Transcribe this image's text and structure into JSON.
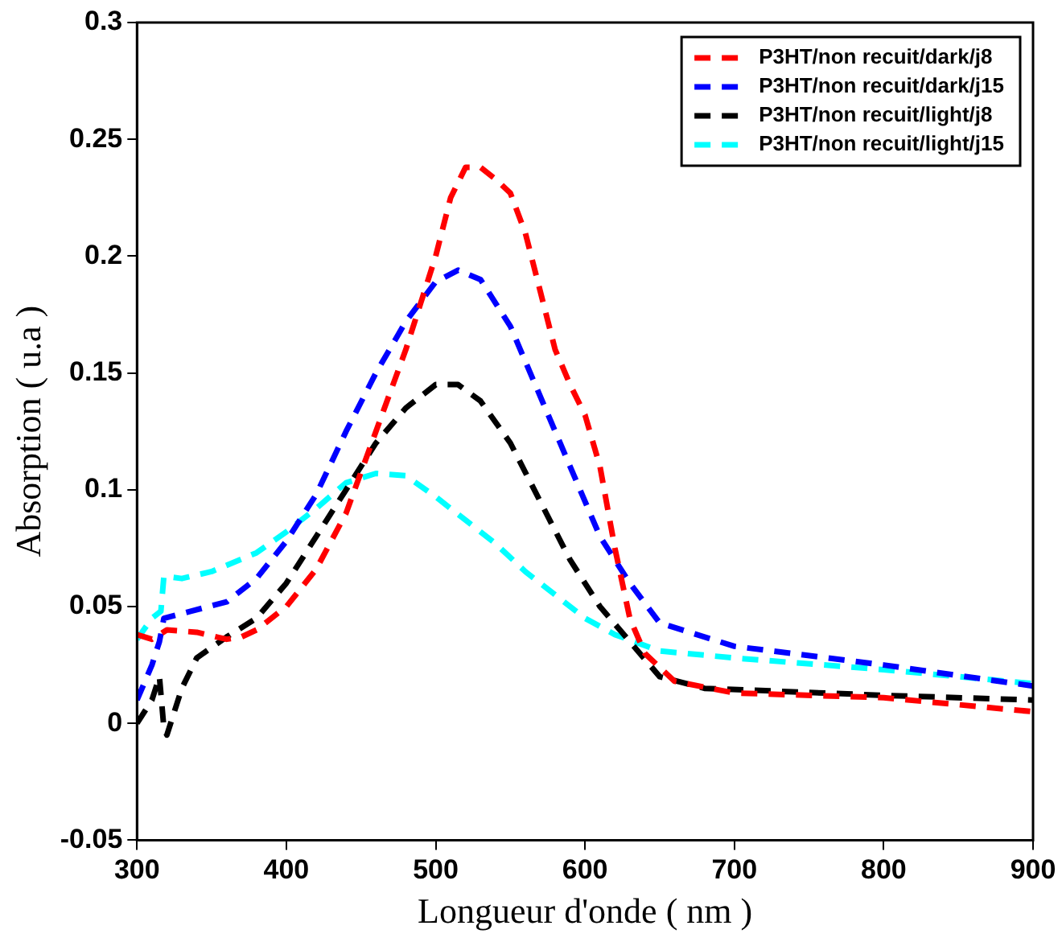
{
  "chart_data": {
    "type": "line",
    "xlabel": "Longueur d'onde ( nm )",
    "ylabel": "Absorption ( u.a )",
    "xlim": [
      300,
      900
    ],
    "xticks": [
      300,
      400,
      500,
      600,
      700,
      800,
      900
    ],
    "ylim": [
      -0.05,
      0.3
    ],
    "yticks": [
      -0.05,
      0,
      0.05,
      0.1,
      0.15,
      0.2,
      0.25,
      0.3
    ],
    "grid": false,
    "legend": "top right",
    "marker": "none",
    "line_style": "dashed",
    "series": [
      {
        "name": "P3HT/non recuit/dark/j8",
        "color": "#ff0000",
        "x": [
          300,
          310,
          320,
          340,
          360,
          370,
          380,
          400,
          420,
          440,
          460,
          480,
          490,
          500,
          510,
          520,
          530,
          540,
          550,
          560,
          570,
          580,
          590,
          600,
          610,
          620,
          630,
          640,
          660,
          700,
          800,
          900
        ],
        "values": [
          0.038,
          0.036,
          0.04,
          0.039,
          0.036,
          0.037,
          0.04,
          0.05,
          0.066,
          0.09,
          0.125,
          0.16,
          0.18,
          0.2,
          0.225,
          0.238,
          0.238,
          0.233,
          0.227,
          0.21,
          0.185,
          0.16,
          0.145,
          0.132,
          0.11,
          0.075,
          0.045,
          0.03,
          0.018,
          0.013,
          0.011,
          0.005
        ]
      },
      {
        "name": "P3HT/non recuit/dark/j15",
        "color": "#0000ff",
        "x": [
          300,
          310,
          315,
          318,
          330,
          360,
          380,
          400,
          420,
          440,
          460,
          480,
          500,
          515,
          530,
          550,
          570,
          590,
          610,
          630,
          650,
          700,
          800,
          900
        ],
        "values": [
          0.01,
          0.025,
          0.035,
          0.045,
          0.047,
          0.052,
          0.062,
          0.078,
          0.098,
          0.125,
          0.15,
          0.172,
          0.189,
          0.194,
          0.19,
          0.17,
          0.14,
          0.11,
          0.08,
          0.06,
          0.043,
          0.033,
          0.025,
          0.016
        ]
      },
      {
        "name": "P3HT/non recuit/light/j8",
        "color": "#000000",
        "x": [
          300,
          310,
          315,
          318,
          320,
          330,
          340,
          360,
          380,
          400,
          420,
          440,
          460,
          480,
          500,
          515,
          530,
          550,
          570,
          590,
          610,
          630,
          650,
          680,
          800,
          900
        ],
        "values": [
          0.0,
          0.01,
          0.02,
          -0.002,
          -0.005,
          0.015,
          0.028,
          0.037,
          0.045,
          0.06,
          0.08,
          0.1,
          0.12,
          0.135,
          0.145,
          0.145,
          0.138,
          0.12,
          0.095,
          0.07,
          0.05,
          0.035,
          0.02,
          0.015,
          0.012,
          0.01
        ]
      },
      {
        "name": "P3HT/non recuit/light/j15",
        "color": "#00ffff",
        "x": [
          300,
          310,
          316,
          318,
          330,
          350,
          380,
          400,
          420,
          440,
          460,
          480,
          500,
          520,
          540,
          560,
          580,
          600,
          620,
          650,
          700,
          800,
          900
        ],
        "values": [
          0.036,
          0.045,
          0.048,
          0.063,
          0.062,
          0.065,
          0.073,
          0.082,
          0.092,
          0.103,
          0.107,
          0.106,
          0.097,
          0.087,
          0.077,
          0.065,
          0.055,
          0.045,
          0.038,
          0.031,
          0.028,
          0.023,
          0.017
        ]
      }
    ]
  }
}
